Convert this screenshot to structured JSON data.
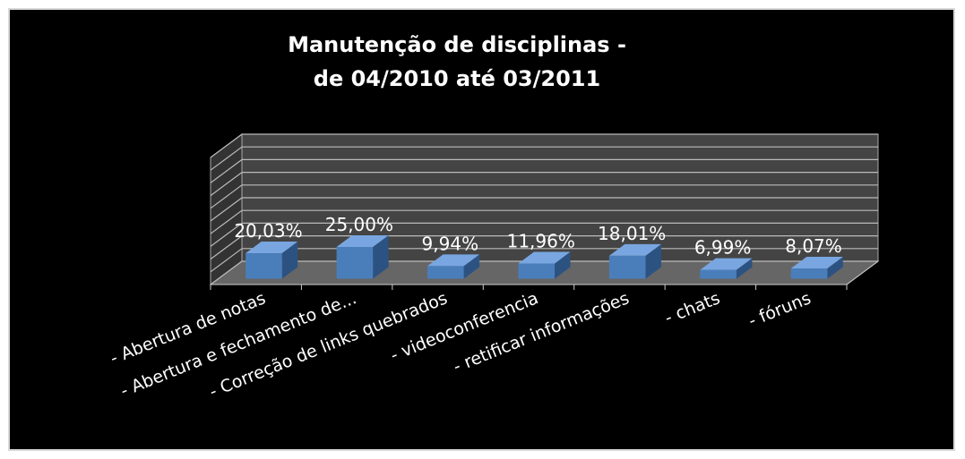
{
  "chart_data": {
    "type": "bar3d",
    "title": [
      "Manutenção de disciplinas -",
      "de 04/2010 até 03/2011"
    ],
    "categories": [
      "- Abertura de notas",
      "- Abertura e fechamento de...",
      "- Correção de links quebrados",
      "- videoconferencia",
      "- retificar informações",
      "- chats",
      "- fóruns"
    ],
    "values": [
      20.03,
      25.0,
      9.94,
      11.96,
      18.01,
      6.99,
      8.07
    ],
    "value_labels": [
      "20,03%",
      "25,00%",
      "9,94%",
      "11,96%",
      "18,01%",
      "6,99%",
      "8,07%"
    ],
    "color": "#4a7ebb",
    "ylim": [
      0,
      100
    ],
    "yticks": [
      0,
      10,
      20,
      30,
      40,
      50,
      60,
      70,
      80,
      90,
      100
    ],
    "grid": true
  }
}
